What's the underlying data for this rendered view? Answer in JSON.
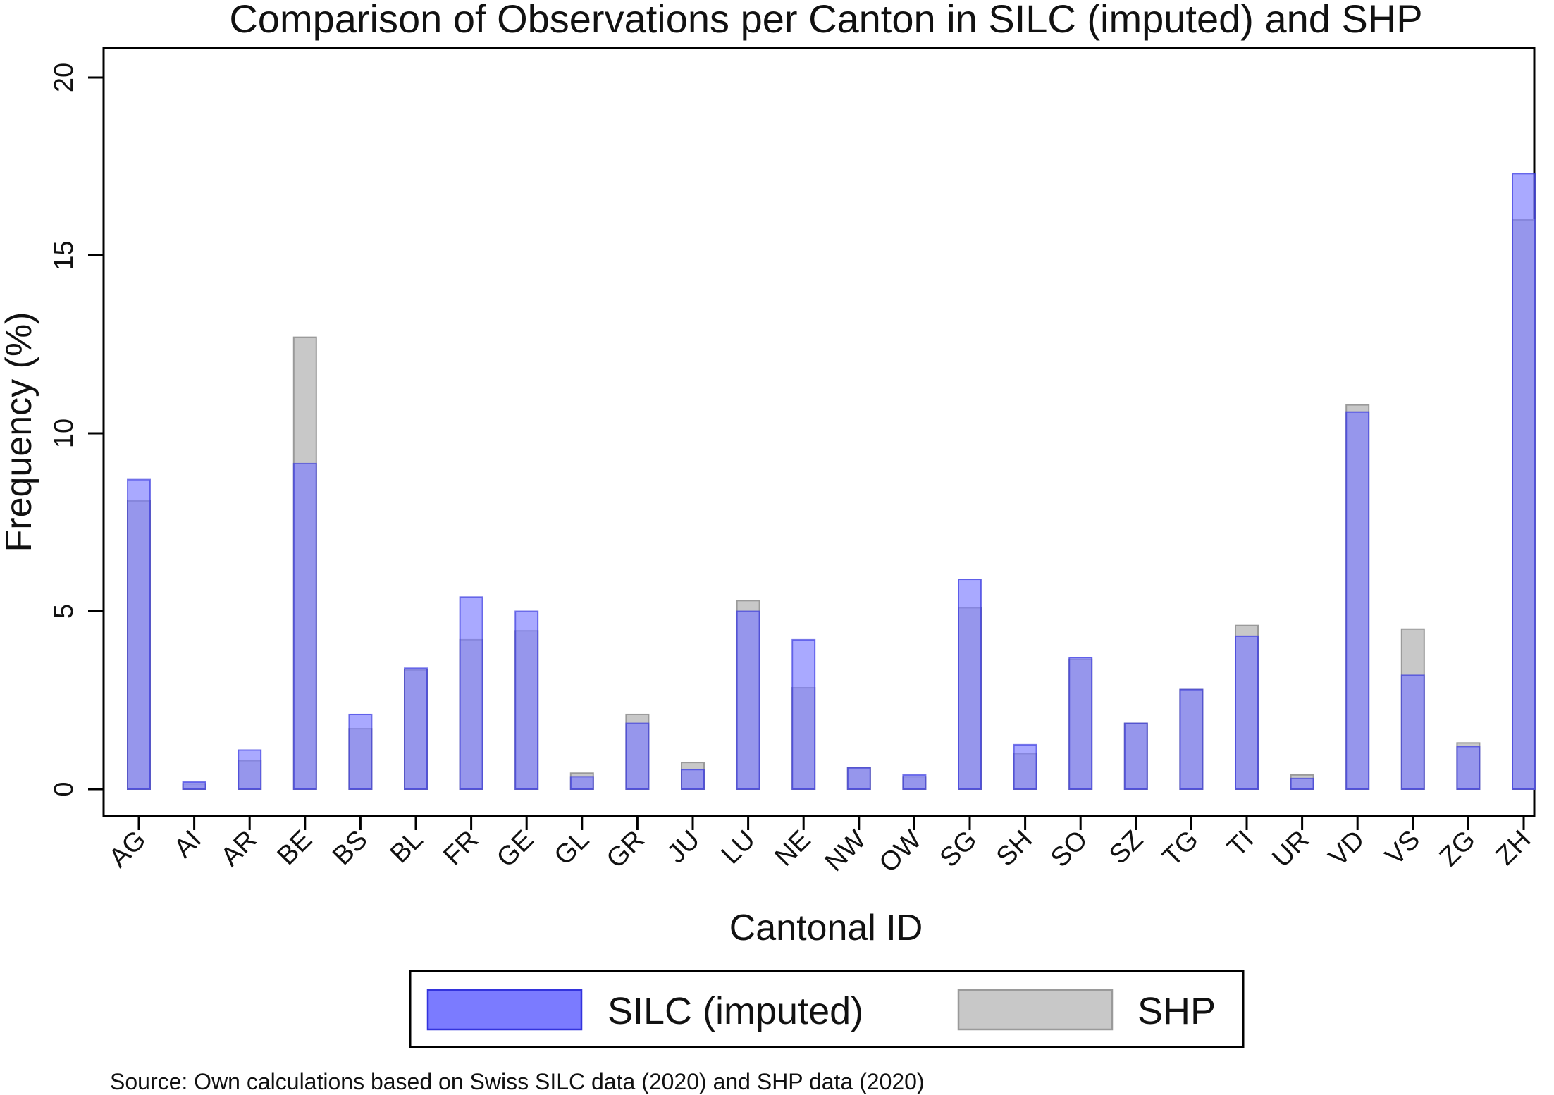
{
  "chart_data": {
    "type": "bar",
    "title": "Comparison of Observations per Canton in SILC (imputed) and SHP",
    "xlabel": "Cantonal ID",
    "ylabel": "Frequency (%)",
    "ylim": [
      0,
      20
    ],
    "yticks": [
      "0",
      "5",
      "10",
      "15",
      "20"
    ],
    "categories": [
      "AG",
      "AI",
      "AR",
      "BE",
      "BS",
      "BL",
      "FR",
      "GE",
      "GL",
      "GR",
      "JU",
      "LU",
      "NE",
      "NW",
      "OW",
      "SG",
      "SH",
      "SO",
      "SZ",
      "TG",
      "TI",
      "UR",
      "VD",
      "VS",
      "ZG",
      "ZH"
    ],
    "series": [
      {
        "name": "SILC (imputed)",
        "color": "#7b7bff",
        "border": "#3333dd",
        "values": [
          8.7,
          0.2,
          1.1,
          9.15,
          2.1,
          3.4,
          5.4,
          5.0,
          0.35,
          1.85,
          0.55,
          5.0,
          4.2,
          0.6,
          0.4,
          5.9,
          1.25,
          3.7,
          1.85,
          2.8,
          4.3,
          0.3,
          10.6,
          3.2,
          1.2,
          17.3
        ]
      },
      {
        "name": "SHP",
        "color": "#c8c8c8",
        "border": "#9a9a9a",
        "values": [
          8.1,
          0.15,
          0.8,
          12.7,
          1.7,
          3.35,
          4.2,
          4.45,
          0.45,
          2.1,
          0.75,
          5.3,
          2.85,
          0.6,
          0.35,
          5.1,
          1.0,
          3.65,
          1.85,
          2.8,
          4.6,
          0.4,
          10.8,
          4.5,
          1.3,
          16.0
        ]
      }
    ],
    "legend_position": "bottom",
    "grid": false
  },
  "source_note": "Source: Own calculations based on Swiss SILC data (2020) and SHP data (2020)"
}
